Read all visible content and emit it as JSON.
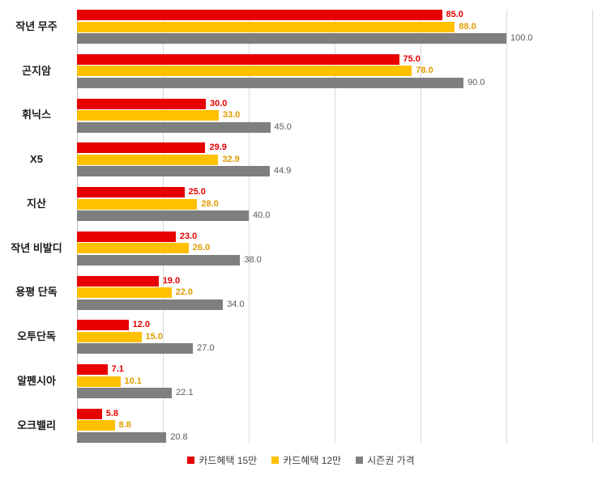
{
  "chart_data": {
    "type": "bar",
    "orientation": "horizontal",
    "title": "",
    "xlabel": "",
    "ylabel": "",
    "xlim": [
      0,
      120
    ],
    "grid_interval": 20,
    "grid": true,
    "legend_position": "bottom",
    "value_format": "one_decimal",
    "categories": [
      "작년 무주",
      "곤지암",
      "휘닉스",
      "X5",
      "지산",
      "작년 비발디",
      "용평 단독",
      "오투단독",
      "알펜시아",
      "오크밸리"
    ],
    "series": [
      {
        "name": "카드혜택 15만",
        "color": "#e60000",
        "label_color": "#e60000",
        "label_bold": true,
        "values": [
          85.0,
          75.0,
          30.0,
          29.9,
          25.0,
          23.0,
          19.0,
          12.0,
          7.1,
          5.8
        ]
      },
      {
        "name": "카드혜택 12만",
        "color": "#ffc000",
        "label_color": "#e09c00",
        "label_bold": true,
        "values": [
          88.0,
          78.0,
          33.0,
          32.9,
          28.0,
          26.0,
          22.0,
          15.0,
          10.1,
          8.8
        ]
      },
      {
        "name": "시즌권 가격",
        "color": "#7f7f7f",
        "label_color": "#595959",
        "label_bold": false,
        "values": [
          100.0,
          90.0,
          45.0,
          44.9,
          40.0,
          38.0,
          34.0,
          27.0,
          22.1,
          20.8
        ]
      }
    ]
  }
}
